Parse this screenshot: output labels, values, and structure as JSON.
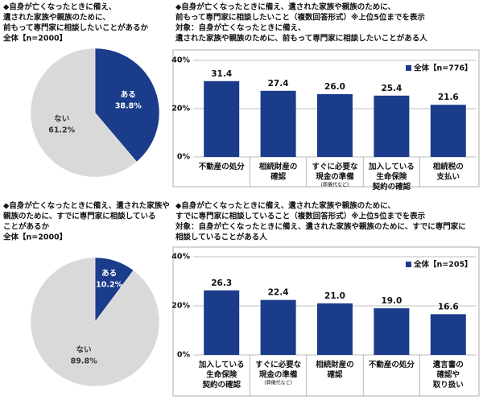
{
  "chart_data": [
    {
      "type": "pie",
      "title": [
        "◆自身が亡くなったときに備え、",
        "遺された家族や親族のために、",
        "前もって専門家に相談したいことがあるか"
      ],
      "subtitle": "全体【n=2000】",
      "categories": [
        "ある",
        "ない"
      ],
      "values": [
        38.8,
        61.2
      ],
      "value_labels": [
        "38.8%",
        "61.2%"
      ],
      "colors": [
        "#1b3b8b",
        "#d9d9d9"
      ]
    },
    {
      "type": "bar",
      "title": [
        "◆自身が亡くなったときに備え、遺された家族や親族のために、",
        "前もって専門家に相談したいこと（複数回答形式）※上位5位までを表示",
        "対象：自身が亡くなったときに備え、",
        "遺された家族や親族のために、前もって専門家に相談したいことがある人"
      ],
      "categories": [
        "不動産の処分",
        "相続財産の\n確認",
        "すぐに必要な\n現金の準備",
        "加入している\n生命保険\n契約の確認",
        "相続税の\n支払い"
      ],
      "category_notes": [
        null,
        null,
        "(葬儀代など)",
        null,
        null
      ],
      "series": [
        {
          "name": "全体【n=776】",
          "color": "#1b3b8b",
          "values": [
            31.4,
            27.4,
            26.0,
            25.4,
            21.6
          ],
          "value_labels": [
            "31.4",
            "27.4",
            "26.0",
            "25.4",
            "21.6"
          ]
        }
      ],
      "ylim": [
        0,
        40
      ],
      "yticks": [
        {
          "value": 0,
          "label": "0%"
        },
        {
          "value": 20,
          "label": "20%"
        },
        {
          "value": 40,
          "label": "40%"
        }
      ],
      "grid": true
    },
    {
      "type": "pie",
      "title": [
        "◆自身が亡くなったときに備え、遺された家族や",
        "親族のために、すでに専門家に相談している",
        "ことがあるか"
      ],
      "subtitle": "全体【n=2000】",
      "categories": [
        "ある",
        "ない"
      ],
      "values": [
        10.2,
        89.8
      ],
      "value_labels": [
        "10.2%",
        "89.8%"
      ],
      "colors": [
        "#1b3b8b",
        "#d9d9d9"
      ]
    },
    {
      "type": "bar",
      "title": [
        "◆自身が亡くなったときに備え、遺された家族や親族のために、",
        "すでに専門家に相談していること（複数回答形式）※上位5位までを表示",
        "対象：自身が亡くなったときに備え、遺された家族や親族のために、すでに専門家に",
        "相談していることがある人"
      ],
      "categories": [
        "加入している\n生命保険\n契約の確認",
        "すぐに必要な\n現金の準備",
        "相続財産の\n確認",
        "不動産の処分",
        "遺言書の\n確認や\n取り扱い"
      ],
      "category_notes": [
        null,
        "(葬儀代など)",
        null,
        null,
        null
      ],
      "series": [
        {
          "name": "全体【n=205】",
          "color": "#1b3b8b",
          "values": [
            26.3,
            22.4,
            21.0,
            19.0,
            16.6
          ],
          "value_labels": [
            "26.3",
            "22.4",
            "21.0",
            "19.0",
            "16.6"
          ]
        }
      ],
      "ylim": [
        0,
        40
      ],
      "yticks": [
        {
          "value": 0,
          "label": "0%"
        },
        {
          "value": 20,
          "label": "20%"
        },
        {
          "value": 40,
          "label": "40%"
        }
      ],
      "grid": true
    }
  ]
}
